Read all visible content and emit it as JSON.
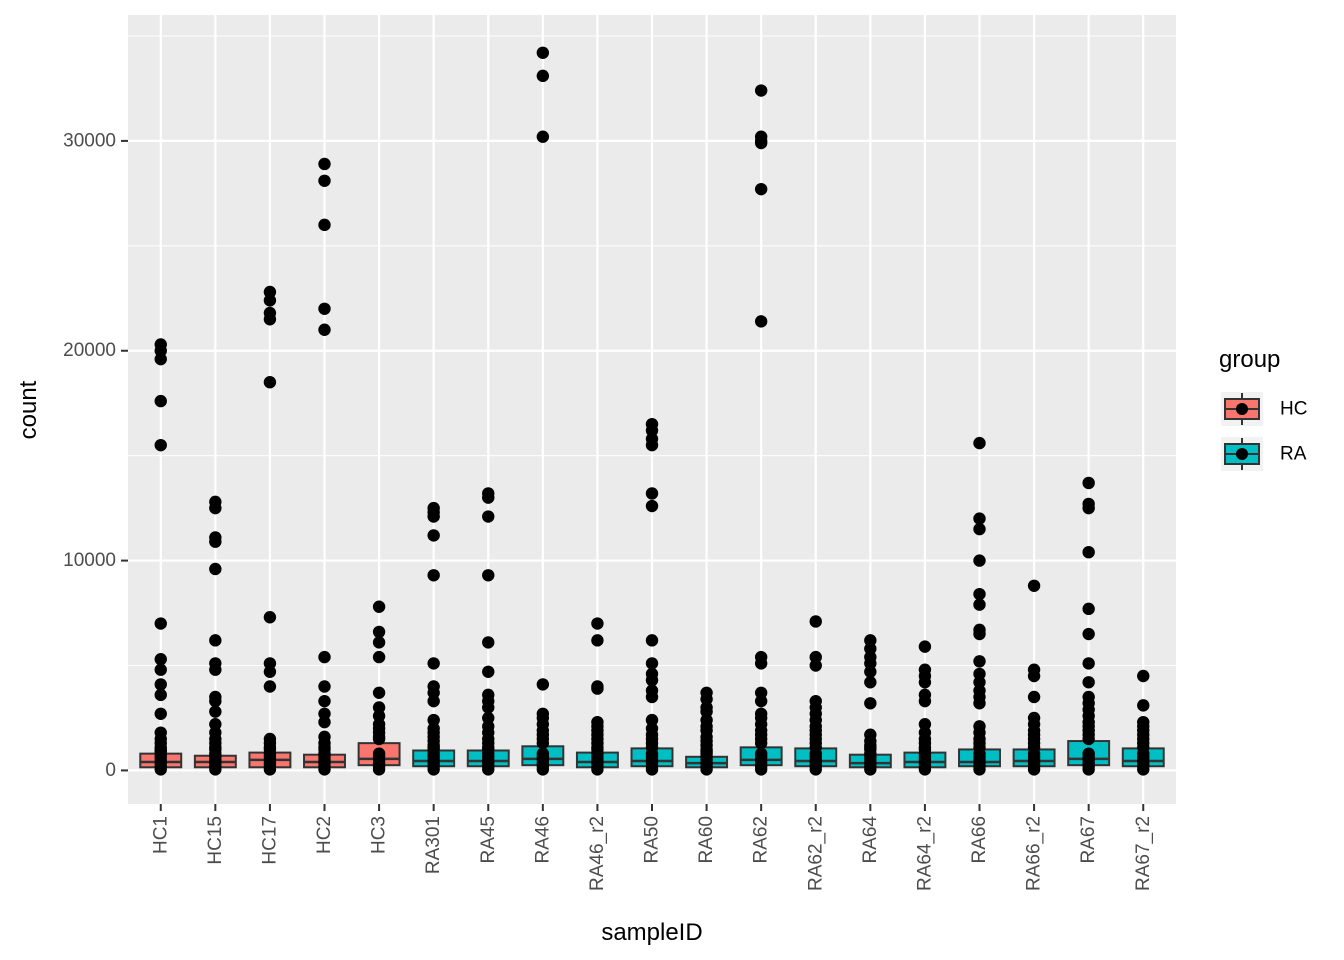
{
  "chart_data": {
    "type": "boxplot",
    "xlabel": "sampleID",
    "ylabel": "count",
    "ylim": [
      -1600,
      36000
    ],
    "yticks": [
      0,
      10000,
      20000,
      30000
    ],
    "legend": {
      "title": "group",
      "placement": "right",
      "entries": [
        {
          "label": "HC",
          "color": "#F8766D"
        },
        {
          "label": "RA",
          "color": "#00BFC4"
        }
      ]
    },
    "colors": {
      "HC": "#F8766D",
      "RA": "#00BFC4",
      "panel": "#EBEBEB",
      "grid": "#FFFFFF",
      "box_line": "#333333",
      "point": "#000000"
    },
    "boxes": [
      {
        "sample": "HC1",
        "group": "HC",
        "q1": 150,
        "median": 400,
        "q3": 800,
        "outliers": [
          20300,
          20000,
          19600,
          17600,
          15500,
          7000,
          5300,
          4800,
          4100,
          3600,
          2700,
          1800,
          1500,
          1300,
          1100,
          1000,
          950,
          900
        ]
      },
      {
        "sample": "HC15",
        "group": "HC",
        "q1": 150,
        "median": 400,
        "q3": 700,
        "outliers": [
          12800,
          12500,
          11100,
          10900,
          9600,
          6200,
          5100,
          4800,
          3500,
          3300,
          2800,
          2200,
          1800,
          1500,
          1300,
          1100,
          1000
        ]
      },
      {
        "sample": "HC17",
        "group": "HC",
        "q1": 150,
        "median": 500,
        "q3": 850,
        "outliers": [
          22800,
          22400,
          21800,
          21500,
          18500,
          7300,
          5100,
          4700,
          4000,
          1500,
          1300,
          1100,
          1000
        ]
      },
      {
        "sample": "HC2",
        "group": "HC",
        "q1": 150,
        "median": 400,
        "q3": 750,
        "outliers": [
          28900,
          28100,
          26000,
          22000,
          21000,
          5400,
          4000,
          3300,
          2700,
          2300,
          1600,
          1300,
          1100,
          1000
        ]
      },
      {
        "sample": "HC3",
        "group": "HC",
        "q1": 250,
        "median": 550,
        "q3": 1300,
        "outliers": [
          7800,
          6600,
          6100,
          5400,
          3700,
          3000,
          2600,
          2200,
          2000,
          1800,
          1600,
          1500
        ]
      },
      {
        "sample": "RA301",
        "group": "RA",
        "q1": 200,
        "median": 450,
        "q3": 950,
        "outliers": [
          12500,
          12300,
          12100,
          11200,
          9300,
          5100,
          4000,
          3700,
          3300,
          2400,
          2000,
          1800,
          1600,
          1400,
          1200,
          1100,
          1000
        ]
      },
      {
        "sample": "RA45",
        "group": "RA",
        "q1": 200,
        "median": 450,
        "q3": 950,
        "outliers": [
          13200,
          13000,
          12100,
          9300,
          6100,
          4700,
          3600,
          3300,
          3000,
          2500,
          2100,
          1800,
          1500,
          1300,
          1100,
          1000
        ]
      },
      {
        "sample": "RA46",
        "group": "RA",
        "q1": 250,
        "median": 550,
        "q3": 1150,
        "outliers": [
          34200,
          33100,
          30200,
          4100,
          2700,
          2500,
          2200,
          1900,
          1700,
          1500,
          1300
        ]
      },
      {
        "sample": "RA46_r2",
        "group": "RA",
        "q1": 150,
        "median": 400,
        "q3": 850,
        "outliers": [
          7000,
          6200,
          4000,
          3900,
          2300,
          2100,
          1900,
          1700,
          1500,
          1300,
          1100,
          1000
        ]
      },
      {
        "sample": "RA50",
        "group": "RA",
        "q1": 200,
        "median": 450,
        "q3": 1050,
        "outliers": [
          16500,
          16200,
          15800,
          15500,
          13200,
          12600,
          6200,
          5100,
          4600,
          4300,
          3800,
          3500,
          2400,
          2000,
          1700,
          1500,
          1300,
          1100
        ]
      },
      {
        "sample": "RA60",
        "group": "RA",
        "q1": 150,
        "median": 350,
        "q3": 650,
        "outliers": [
          3700,
          3400,
          3000,
          2800,
          2400,
          2100,
          1900,
          1600,
          1400,
          1200,
          1000,
          900
        ]
      },
      {
        "sample": "RA62",
        "group": "RA",
        "q1": 250,
        "median": 500,
        "q3": 1100,
        "outliers": [
          32400,
          30200,
          30000,
          29900,
          27700,
          21400,
          5400,
          5100,
          3700,
          3300,
          2700,
          2500,
          2200,
          1900,
          1700,
          1500,
          1300
        ]
      },
      {
        "sample": "RA62_r2",
        "group": "RA",
        "q1": 200,
        "median": 450,
        "q3": 1050,
        "outliers": [
          7100,
          5400,
          5000,
          3300,
          3000,
          2700,
          2400,
          2100,
          1900,
          1700,
          1500,
          1300,
          1100
        ]
      },
      {
        "sample": "RA64",
        "group": "RA",
        "q1": 150,
        "median": 350,
        "q3": 750,
        "outliers": [
          6200,
          5800,
          5400,
          5100,
          4700,
          4200,
          3200,
          1700,
          1400,
          1200,
          1100,
          1000
        ]
      },
      {
        "sample": "RA64_r2",
        "group": "RA",
        "q1": 150,
        "median": 400,
        "q3": 850,
        "outliers": [
          5900,
          4800,
          4500,
          4200,
          3600,
          3300,
          2200,
          1800,
          1500,
          1300,
          1100,
          1000
        ]
      },
      {
        "sample": "RA66",
        "group": "RA",
        "q1": 200,
        "median": 400,
        "q3": 1000,
        "outliers": [
          15600,
          12000,
          11500,
          10000,
          8400,
          7900,
          6700,
          6500,
          5200,
          4600,
          4200,
          3800,
          3500,
          3200,
          2100,
          1800,
          1500,
          1300,
          1100
        ]
      },
      {
        "sample": "RA66_r2",
        "group": "RA",
        "q1": 200,
        "median": 450,
        "q3": 1000,
        "outliers": [
          8800,
          4800,
          4500,
          3500,
          2500,
          2200,
          1900,
          1700,
          1500,
          1300,
          1100
        ]
      },
      {
        "sample": "RA67",
        "group": "RA",
        "q1": 250,
        "median": 550,
        "q3": 1400,
        "outliers": [
          13700,
          12700,
          12500,
          10400,
          7700,
          6500,
          5100,
          4200,
          3500,
          3200,
          2900,
          2600,
          2300,
          2100,
          1900,
          1700,
          1500
        ]
      },
      {
        "sample": "RA67_r2",
        "group": "RA",
        "q1": 200,
        "median": 450,
        "q3": 1050,
        "outliers": [
          4500,
          3100,
          2300,
          2100,
          1900,
          1700,
          1500,
          1300,
          1100
        ]
      }
    ]
  }
}
